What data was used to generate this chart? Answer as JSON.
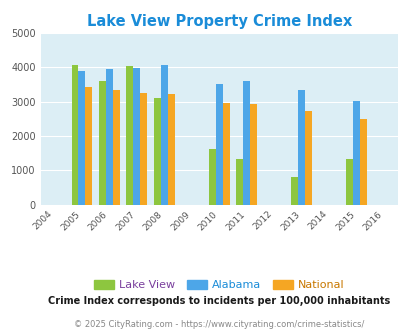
{
  "title": "Lake View Property Crime Index",
  "title_color": "#1a8cd8",
  "years": [
    2005,
    2006,
    2007,
    2008,
    2010,
    2011,
    2013,
    2015
  ],
  "lake_view": [
    4080,
    3600,
    4050,
    3100,
    1620,
    1330,
    800,
    1330
  ],
  "alabama": [
    3900,
    3940,
    3970,
    4080,
    3500,
    3600,
    3350,
    3010
  ],
  "national": [
    3430,
    3340,
    3250,
    3210,
    2960,
    2940,
    2730,
    2480
  ],
  "lake_view_color": "#8dc63f",
  "alabama_color": "#4da6e8",
  "national_color": "#f5a623",
  "bg_color": "#dceef5",
  "xlim": [
    2003.5,
    2016.5
  ],
  "ylim": [
    0,
    5000
  ],
  "yticks": [
    0,
    1000,
    2000,
    3000,
    4000,
    5000
  ],
  "xticks": [
    2004,
    2005,
    2006,
    2007,
    2008,
    2009,
    2010,
    2011,
    2012,
    2013,
    2014,
    2015,
    2016
  ],
  "bar_width": 0.25,
  "legend_labels": [
    "Lake View",
    "Alabama",
    "National"
  ],
  "legend_label_colors": [
    "#7a3f9d",
    "#1a8cd8",
    "#c87800"
  ],
  "footnote1": "Crime Index corresponds to incidents per 100,000 inhabitants",
  "footnote2": "© 2025 CityRating.com - https://www.cityrating.com/crime-statistics/",
  "footnote1_color": "#1a1a1a",
  "footnote2_color": "#888888"
}
